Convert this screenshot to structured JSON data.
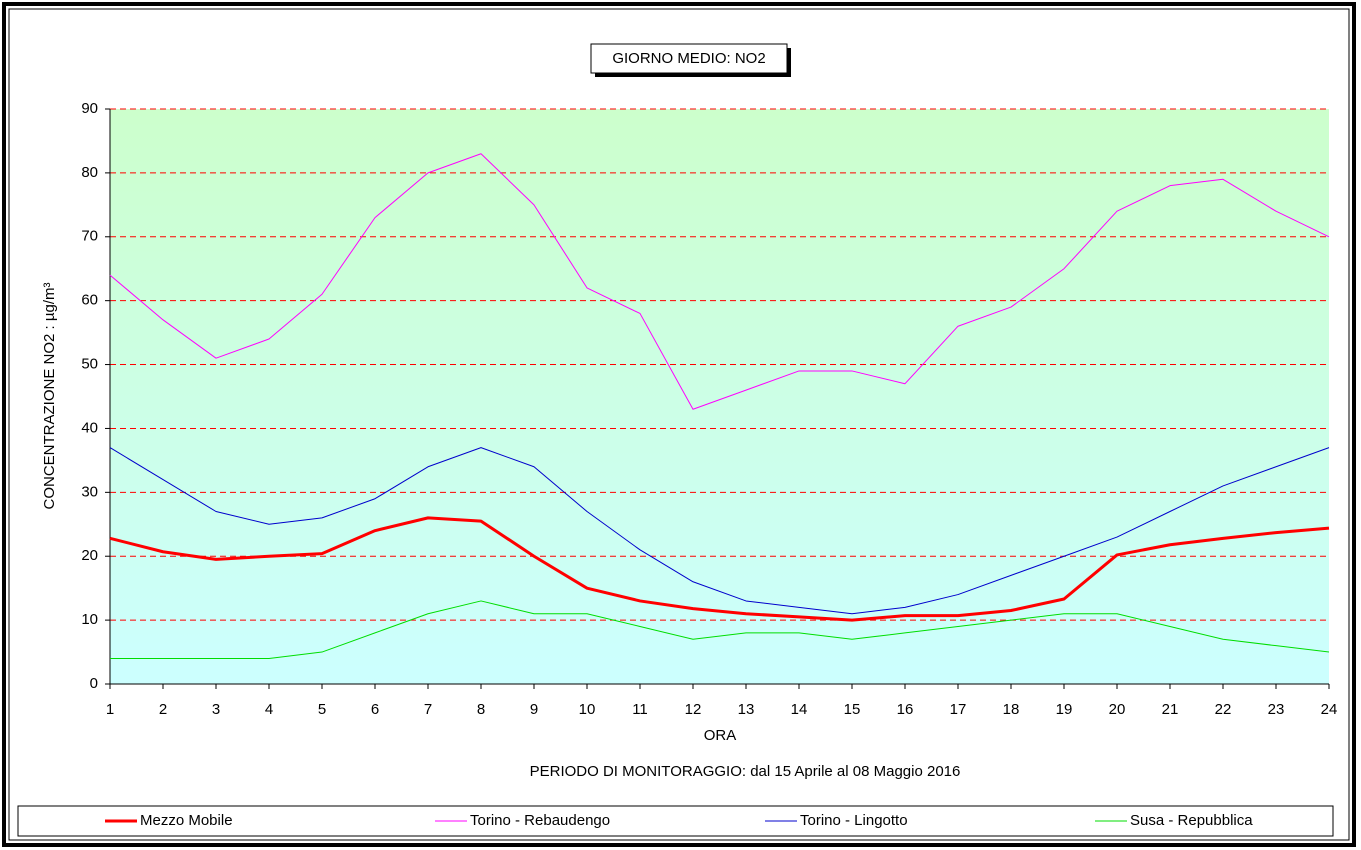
{
  "chart_data": {
    "type": "line",
    "title": "GIORNO MEDIO: NO2",
    "y_label": "CONCENTRAZIONE NO2 :  µg/m³",
    "x_label": "ORA",
    "note": "PERIODO DI MONITORAGGIO: dal 15 Aprile al 08 Maggio 2016",
    "x": [
      1,
      2,
      3,
      4,
      5,
      6,
      7,
      8,
      9,
      10,
      11,
      12,
      13,
      14,
      15,
      16,
      17,
      18,
      19,
      20,
      21,
      22,
      23,
      24
    ],
    "xlim": [
      1,
      24
    ],
    "xticks": [
      1,
      2,
      3,
      4,
      5,
      6,
      7,
      8,
      9,
      10,
      11,
      12,
      13,
      14,
      15,
      16,
      17,
      18,
      19,
      20,
      21,
      22,
      23,
      24
    ],
    "ylim": [
      0,
      90
    ],
    "yticks": [
      0,
      10,
      20,
      30,
      40,
      50,
      60,
      70,
      80,
      90
    ],
    "grid": true,
    "legend": "bottom",
    "series": [
      {
        "name": "Mezzo Mobile",
        "color": "#ff0000",
        "line_width": 3,
        "values": [
          22.8,
          20.7,
          19.5,
          20,
          20.4,
          24,
          26,
          25.5,
          20,
          15,
          13,
          11.8,
          11,
          10.5,
          10,
          10.7,
          10.7,
          11.5,
          13.3,
          20.2,
          21.8,
          22.8,
          23.7,
          24.4
        ]
      },
      {
        "name": "Torino - Rebaudengo",
        "color": "#ff00ff",
        "line_width": 1,
        "values": [
          64,
          57,
          51,
          54,
          61,
          73,
          80,
          83,
          75,
          62,
          58,
          43,
          46,
          49,
          49,
          47,
          56,
          59,
          65,
          74,
          78,
          79,
          74,
          70
        ]
      },
      {
        "name": "Torino - Lingotto",
        "color": "#0000cc",
        "line_width": 1,
        "values": [
          37,
          32,
          27,
          25,
          26,
          29,
          34,
          37,
          34,
          27,
          21,
          16,
          13,
          12,
          11,
          12,
          14,
          17,
          20,
          23,
          27,
          31,
          34,
          37
        ]
      },
      {
        "name": "Susa - Repubblica",
        "color": "#00dd00",
        "line_width": 1,
        "values": [
          4,
          4,
          4,
          4,
          5,
          8,
          11,
          13,
          11,
          11,
          9,
          7,
          8,
          8,
          7,
          8,
          9,
          10,
          11,
          11,
          9,
          7,
          6,
          5
        ]
      }
    ]
  }
}
